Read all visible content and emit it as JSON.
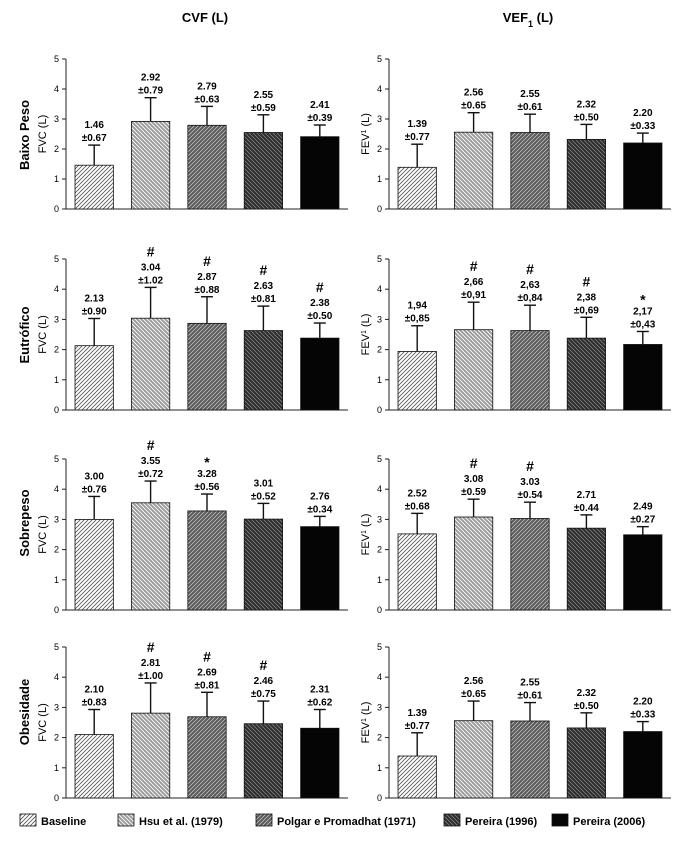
{
  "columns": [
    "CVF (L)",
    "VEF1 (L)"
  ],
  "rows": [
    "Baixo Peso",
    "Eutrófico",
    "Sobrepeso",
    "Obesidade"
  ],
  "legend": [
    {
      "label": "Baseline",
      "pattern": "hatch-fine"
    },
    {
      "label": "Hsu et al. (1979)",
      "pattern": "hatch-medium"
    },
    {
      "label": "Polgar e Promadhat (1971)",
      "pattern": "hatch-dark"
    },
    {
      "label": "Pereira (1996)",
      "pattern": "hatch-darker"
    },
    {
      "label": "Pereira (2006)",
      "pattern": "solid-black"
    }
  ],
  "colors": {
    "bar_edge": "#111111",
    "solid": "#050505",
    "axis": "#222222"
  },
  "chart_data": [
    {
      "type": "bar",
      "row": "Baixo Peso",
      "column": "CVF (L)",
      "ylabel": "FVC (L)",
      "ylim": [
        0,
        5
      ],
      "yticks": [
        0,
        1,
        2,
        3,
        4,
        5
      ],
      "categories": [
        "Baseline",
        "Hsu et al. (1979)",
        "Polgar e Promadhat (1971)",
        "Pereira (1996)",
        "Pereira (2006)"
      ],
      "values": [
        1.46,
        2.92,
        2.79,
        2.55,
        2.41
      ],
      "errors": [
        0.67,
        0.79,
        0.63,
        0.59,
        0.39
      ],
      "labels": [
        "1.46",
        "2.92",
        "2.79",
        "2.55",
        "2.41"
      ],
      "error_labels": [
        "±0.67",
        "±0.79",
        "±0.63",
        "±0.59",
        "±0.39"
      ],
      "marks": [
        "",
        "",
        "",
        "",
        ""
      ]
    },
    {
      "type": "bar",
      "row": "Baixo Peso",
      "column": "VEF1 (L)",
      "ylabel": "FEV1 (L)",
      "ylim": [
        0,
        5
      ],
      "yticks": [
        0,
        1,
        2,
        3,
        4,
        5
      ],
      "categories": [
        "Baseline",
        "Hsu et al. (1979)",
        "Polgar e Promadhat (1971)",
        "Pereira (1996)",
        "Pereira (2006)"
      ],
      "values": [
        1.39,
        2.56,
        2.55,
        2.32,
        2.2
      ],
      "errors": [
        0.77,
        0.65,
        0.61,
        0.5,
        0.33
      ],
      "labels": [
        "1.39",
        "2.56",
        "2.55",
        "2.32",
        "2.20"
      ],
      "error_labels": [
        "±0.77",
        "±0.65",
        "±0.61",
        "±0.50",
        "±0.33"
      ],
      "marks": [
        "",
        "",
        "",
        "",
        ""
      ]
    },
    {
      "type": "bar",
      "row": "Eutrófico",
      "column": "CVF (L)",
      "ylabel": "FVC (L)",
      "ylim": [
        0,
        5
      ],
      "yticks": [
        0,
        1,
        2,
        3,
        4,
        5
      ],
      "categories": [
        "Baseline",
        "Hsu et al. (1979)",
        "Polgar e Promadhat (1971)",
        "Pereira (1996)",
        "Pereira (2006)"
      ],
      "values": [
        2.13,
        3.04,
        2.87,
        2.63,
        2.38
      ],
      "errors": [
        0.9,
        1.02,
        0.88,
        0.81,
        0.5
      ],
      "labels": [
        "2.13",
        "3.04",
        "2.87",
        "2.63",
        "2.38"
      ],
      "error_labels": [
        "±0.90",
        "±1.02",
        "±0.88",
        "±0.81",
        "±0.50"
      ],
      "marks": [
        "",
        "#",
        "#",
        "#",
        "#"
      ]
    },
    {
      "type": "bar",
      "row": "Eutrófico",
      "column": "VEF1 (L)",
      "ylabel": "FEV1 (L)",
      "ylim": [
        0,
        5
      ],
      "yticks": [
        0,
        1,
        2,
        3,
        4,
        5
      ],
      "categories": [
        "Baseline",
        "Hsu et al. (1979)",
        "Polgar e Promadhat (1971)",
        "Pereira (1996)",
        "Pereira (2006)"
      ],
      "values": [
        1.94,
        2.66,
        2.63,
        2.38,
        2.17
      ],
      "errors": [
        0.85,
        0.91,
        0.84,
        0.69,
        0.43
      ],
      "labels": [
        "1,94",
        "2,66",
        "2,63",
        "2,38",
        "2,17"
      ],
      "error_labels": [
        "±0,85",
        "±0,91",
        "±0,84",
        "±0,69",
        "±0,43"
      ],
      "marks": [
        "",
        "#",
        "#",
        "#",
        "*"
      ]
    },
    {
      "type": "bar",
      "row": "Sobrepeso",
      "column": "CVF (L)",
      "ylabel": "FVC (L)",
      "ylim": [
        0,
        5
      ],
      "yticks": [
        0,
        1,
        2,
        3,
        4,
        5
      ],
      "categories": [
        "Baseline",
        "Hsu et al. (1979)",
        "Polgar e Promadhat (1971)",
        "Pereira (1996)",
        "Pereira (2006)"
      ],
      "values": [
        3.0,
        3.55,
        3.28,
        3.01,
        2.76
      ],
      "errors": [
        0.76,
        0.72,
        0.56,
        0.52,
        0.34
      ],
      "labels": [
        "3.00",
        "3.55",
        "3.28",
        "3.01",
        "2.76"
      ],
      "error_labels": [
        "±0.76",
        "±0.72",
        "±0.56",
        "±0.52",
        "±0.34"
      ],
      "marks": [
        "",
        "#",
        "*",
        "",
        ""
      ]
    },
    {
      "type": "bar",
      "row": "Sobrepeso",
      "column": "VEF1 (L)",
      "ylabel": "FEV1 (L)",
      "ylim": [
        0,
        5
      ],
      "yticks": [
        0,
        1,
        2,
        3,
        4,
        5
      ],
      "categories": [
        "Baseline",
        "Hsu et al. (1979)",
        "Polgar e Promadhat (1971)",
        "Pereira (1996)",
        "Pereira (2006)"
      ],
      "values": [
        2.52,
        3.08,
        3.03,
        2.71,
        2.49
      ],
      "errors": [
        0.68,
        0.59,
        0.54,
        0.44,
        0.27
      ],
      "labels": [
        "2.52",
        "3.08",
        "3.03",
        "2.71",
        "2.49"
      ],
      "error_labels": [
        "±0.68",
        "±0.59",
        "±0.54",
        "±0.44",
        "±0.27"
      ],
      "marks": [
        "",
        "#",
        "#",
        "",
        ""
      ]
    },
    {
      "type": "bar",
      "row": "Obesidade",
      "column": "CVF (L)",
      "ylabel": "FVC (L)",
      "ylim": [
        0,
        5
      ],
      "yticks": [
        0,
        1,
        2,
        3,
        4,
        5
      ],
      "categories": [
        "Baseline",
        "Hsu et al. (1979)",
        "Polgar e Promadhat (1971)",
        "Pereira (1996)",
        "Pereira (2006)"
      ],
      "values": [
        2.1,
        2.81,
        2.69,
        2.46,
        2.31
      ],
      "errors": [
        0.83,
        1.0,
        0.81,
        0.75,
        0.62
      ],
      "labels": [
        "2.10",
        "2.81",
        "2.69",
        "2.46",
        "2.31"
      ],
      "error_labels": [
        "±0.83",
        "±1.00",
        "±0.81",
        "±0.75",
        "±0.62"
      ],
      "marks": [
        "",
        "#",
        "#",
        "#",
        ""
      ]
    },
    {
      "type": "bar",
      "row": "Obesidade",
      "column": "VEF1 (L)",
      "ylabel": "FEV1 (L)",
      "ylim": [
        0,
        5
      ],
      "yticks": [
        0,
        1,
        2,
        3,
        4,
        5
      ],
      "categories": [
        "Baseline",
        "Hsu et al. (1979)",
        "Polgar e Promadhat (1971)",
        "Pereira (1996)",
        "Pereira (2006)"
      ],
      "values": [
        1.39,
        2.56,
        2.55,
        2.32,
        2.2
      ],
      "errors": [
        0.77,
        0.65,
        0.61,
        0.5,
        0.33
      ],
      "labels": [
        "1.39",
        "2.56",
        "2.55",
        "2.32",
        "2.20"
      ],
      "error_labels": [
        "±0.77",
        "±0.65",
        "±0.61",
        "±0.50",
        "±0.33"
      ],
      "marks": [
        "",
        "",
        "",
        "",
        ""
      ]
    }
  ]
}
